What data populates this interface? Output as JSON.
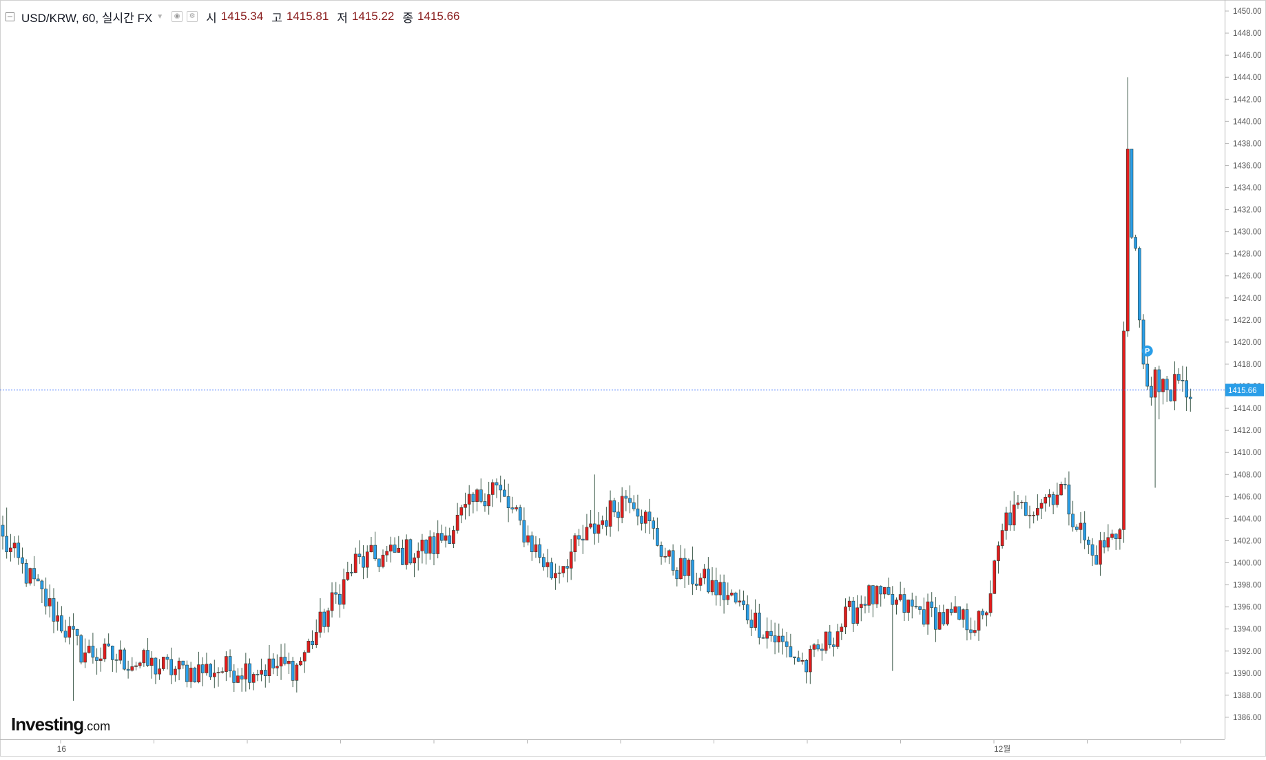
{
  "legend": {
    "symbol": "USD/KRW, 60, 실시간 FX",
    "open_label": "시",
    "open_value": "1415.34",
    "high_label": "고",
    "high_value": "1415.81",
    "low_label": "저",
    "low_value": "1415.22",
    "close_label": "종",
    "close_value": "1415.66"
  },
  "logo": {
    "brand": "Investing",
    "suffix": ".com"
  },
  "colors": {
    "up": "#e31c1c",
    "down": "#2a9ee8",
    "wick": "#3d5a4a",
    "price_line": "#2962ff",
    "axis": "#555555"
  },
  "chart_data": {
    "type": "candlestick",
    "title": "USD/KRW, 60, 실시간 FX",
    "ylim": [
      1384,
      1451
    ],
    "y_ticks": [
      "1386.00",
      "1388.00",
      "1390.00",
      "1392.00",
      "1394.00",
      "1396.00",
      "1398.00",
      "1400.00",
      "1402.00",
      "1404.00",
      "1406.00",
      "1408.00",
      "1410.00",
      "1412.00",
      "1414.00",
      "1416.00",
      "1418.00",
      "1420.00",
      "1422.00",
      "1424.00",
      "1426.00",
      "1428.00",
      "1430.00",
      "1432.00",
      "1434.00",
      "1436.00",
      "1438.00",
      "1440.00",
      "1442.00",
      "1444.00",
      "1446.00",
      "1448.00",
      "1450.00"
    ],
    "x_ticks": [
      {
        "index": 15,
        "label": "16"
      },
      {
        "index": 255,
        "label": "12월"
      }
    ],
    "last_price": "1415.66",
    "marker": "P",
    "marker_index": 292,
    "candle_count": 304,
    "key_points": [
      {
        "index": 0,
        "close": 1402.0
      },
      {
        "index": 20,
        "close": 1392.0
      },
      {
        "index": 45,
        "close": 1390.2
      },
      {
        "index": 75,
        "close": 1390.6
      },
      {
        "index": 90,
        "close": 1400.0
      },
      {
        "index": 110,
        "close": 1401.5
      },
      {
        "index": 125,
        "close": 1407.2
      },
      {
        "index": 140,
        "close": 1399.0
      },
      {
        "index": 160,
        "close": 1406.5
      },
      {
        "index": 170,
        "close": 1400.0
      },
      {
        "index": 185,
        "close": 1397.0
      },
      {
        "index": 205,
        "close": 1390.6
      },
      {
        "index": 220,
        "close": 1397.0
      },
      {
        "index": 240,
        "close": 1395.0
      },
      {
        "index": 250,
        "close": 1394.5
      },
      {
        "index": 256,
        "close": 1404.0
      },
      {
        "index": 270,
        "close": 1406.8
      },
      {
        "index": 278,
        "close": 1400.5
      },
      {
        "index": 285,
        "close": 1403.0
      },
      {
        "index": 286,
        "close": 1421.0
      },
      {
        "index": 287,
        "close": 1437.5
      },
      {
        "index": 289,
        "close": 1428.5
      },
      {
        "index": 291,
        "close": 1418.0
      },
      {
        "index": 294,
        "close": 1416.0
      },
      {
        "index": 303,
        "close": 1415.66
      }
    ]
  }
}
